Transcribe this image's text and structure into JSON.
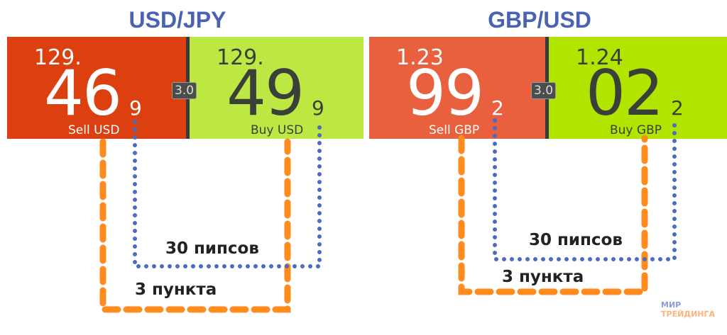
{
  "pairs": [
    {
      "title": "USD/JPY",
      "spread": "3.0",
      "sell": {
        "prefix": "129.",
        "big": "46",
        "pip": "9",
        "label": "Sell USD"
      },
      "buy": {
        "prefix": "129.",
        "big": "49",
        "pip": "9",
        "label": "Buy USD"
      },
      "pips_label": "30 пипсов",
      "points_label": "3 пункта"
    },
    {
      "title": "GBP/USD",
      "spread": "3.0",
      "sell": {
        "prefix": "1.23",
        "big": "99",
        "pip": "2",
        "label": "Sell GBP"
      },
      "buy": {
        "prefix": "1.24",
        "big": "02",
        "pip": "2",
        "label": "Buy GBP"
      },
      "pips_label": "30 пипсов",
      "points_label": "3 пункта"
    }
  ],
  "logo": {
    "line1": "МИР",
    "line2": "ТРЕЙДИНГА"
  },
  "colors": {
    "title": "#4a62b4",
    "sell": "#dc3f10",
    "buy": "#bde843",
    "orange": "#ff8a1e",
    "blue": "#4a6bc0"
  }
}
